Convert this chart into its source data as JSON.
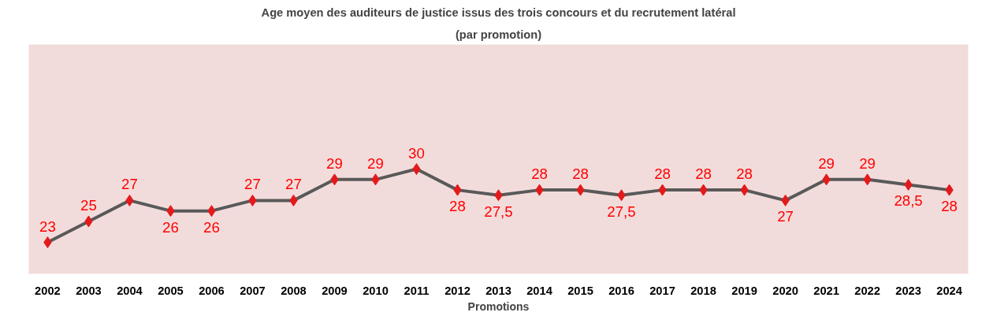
{
  "chart_data": {
    "type": "line",
    "title": "Age moyen des auditeurs de justice issus des trois concours et du recrutement latéral",
    "subtitle": "(par promotion)",
    "xlabel": "Promotions",
    "categories": [
      "2002",
      "2003",
      "2004",
      "2005",
      "2006",
      "2007",
      "2008",
      "2009",
      "2010",
      "2011",
      "2012",
      "2013",
      "2014",
      "2015",
      "2016",
      "2017",
      "2018",
      "2019",
      "2020",
      "2021",
      "2022",
      "2023",
      "2024"
    ],
    "series": [
      {
        "color": "#595959",
        "values": [
          23,
          25,
          27,
          26,
          26,
          27,
          27,
          29,
          29,
          30,
          28,
          27.5,
          28,
          28,
          27.5,
          28,
          28,
          28,
          27,
          29,
          29,
          28.5,
          28
        ],
        "value_labels": [
          "23",
          "25",
          "27",
          "26",
          "26",
          "27",
          "27",
          "29",
          "29",
          "30",
          "28",
          "27,5",
          "28",
          "28",
          "27,5",
          "28",
          "28",
          "28",
          "27",
          "29",
          "29",
          "28,5",
          "28"
        ]
      }
    ],
    "marker": "diamond",
    "grid": false
  }
}
